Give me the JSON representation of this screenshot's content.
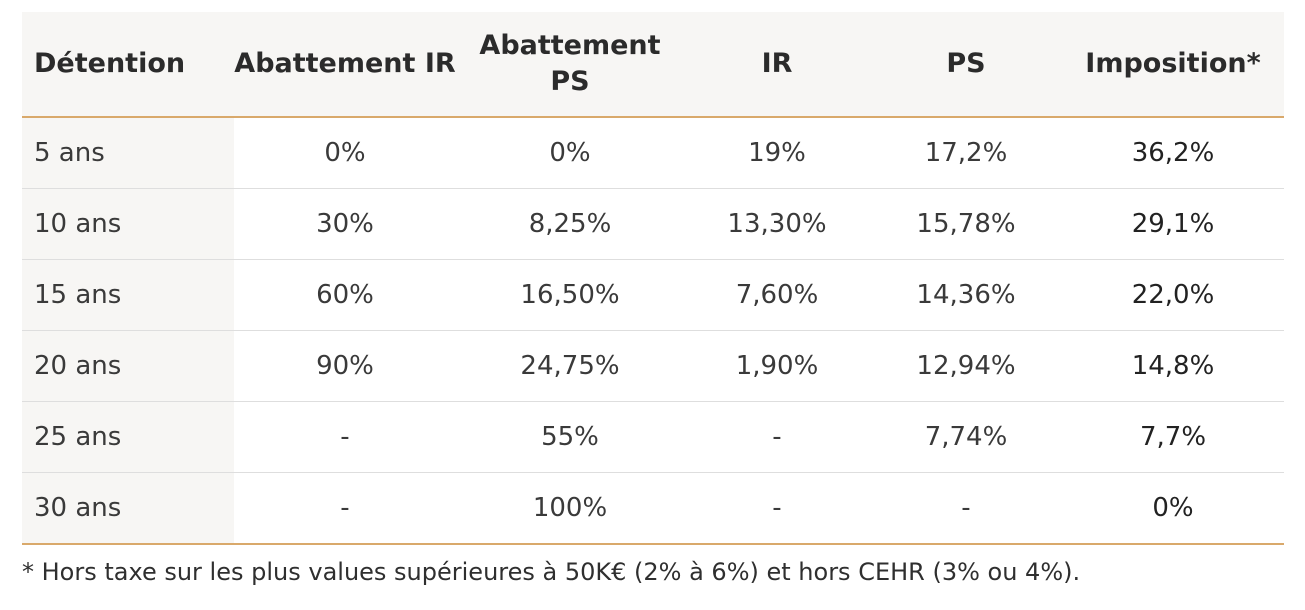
{
  "table": {
    "headers": [
      "Détention",
      "Abattement IR",
      "Abattement PS",
      "IR",
      "PS",
      "Imposition*"
    ],
    "rows": [
      [
        "5 ans",
        "0%",
        "0%",
        "19%",
        "17,2%",
        "36,2%"
      ],
      [
        "10 ans",
        "30%",
        "8,25%",
        "13,30%",
        "15,78%",
        "29,1%"
      ],
      [
        "15 ans",
        "60%",
        "16,50%",
        "7,60%",
        "14,36%",
        "22,0%"
      ],
      [
        "20 ans",
        "90%",
        "24,75%",
        "1,90%",
        "12,94%",
        "14,8%"
      ],
      [
        "25 ans",
        "-",
        "55%",
        "-",
        "7,74%",
        "7,7%"
      ],
      [
        "30 ans",
        "-",
        "100%",
        "-",
        "-",
        "0%"
      ]
    ]
  },
  "footnote": "* Hors taxe sur les plus values supérieures à 50K€ (2% à 6%) et hors CEHR (3% ou 4%).",
  "colors": {
    "accent_rule": "#d9a96b",
    "header_bg": "#f7f6f4"
  }
}
